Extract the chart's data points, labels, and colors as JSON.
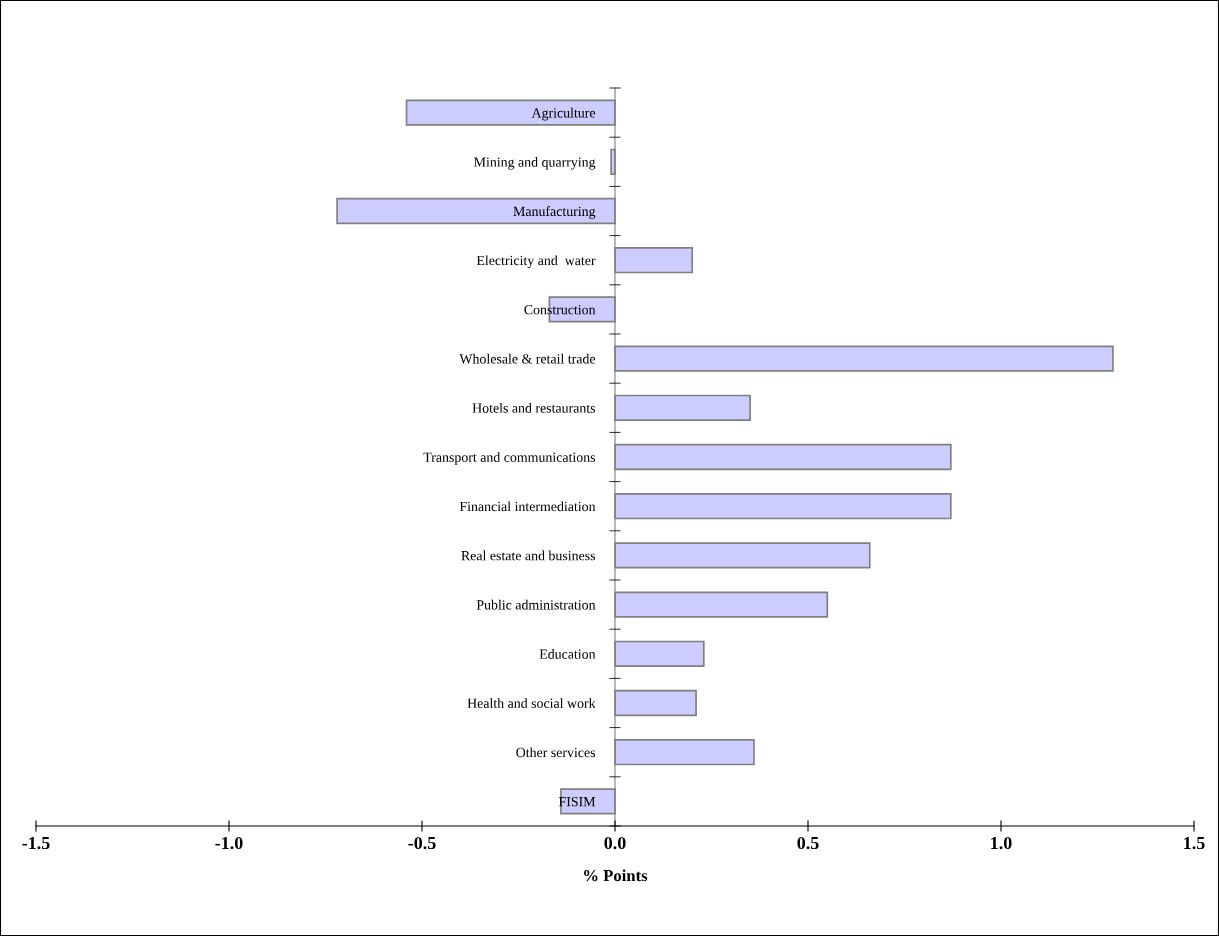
{
  "chart_data": {
    "type": "bar",
    "orientation": "horizontal",
    "xlabel": "% Points",
    "categories": [
      "Agriculture",
      "Mining and quarrying",
      "Manufacturing",
      "Electricity and  water",
      "Construction",
      "Wholesale & retail trade",
      "Hotels and restaurants",
      "Transport and communications",
      "Financial intermediation",
      "Real estate and business",
      "Public administration",
      "Education",
      "Health and social work",
      "Other services",
      "FISIM"
    ],
    "values": [
      -0.54,
      -0.01,
      -0.72,
      0.2,
      -0.17,
      1.29,
      0.35,
      0.87,
      0.87,
      0.66,
      0.55,
      0.23,
      0.21,
      0.36,
      -0.14
    ],
    "color": "#ccccff",
    "xlim": [
      -1.5,
      1.5
    ],
    "xticks": [
      {
        "value": -1.5,
        "label": "-1.5"
      },
      {
        "value": -1.0,
        "label": "-1.0"
      },
      {
        "value": -0.5,
        "label": "-0.5"
      },
      {
        "value": 0.0,
        "label": "0.0"
      },
      {
        "value": 0.5,
        "label": "0.5"
      },
      {
        "value": 1.0,
        "label": "1.0"
      },
      {
        "value": 1.5,
        "label": "1.5"
      }
    ],
    "grid": false,
    "legend": false
  }
}
